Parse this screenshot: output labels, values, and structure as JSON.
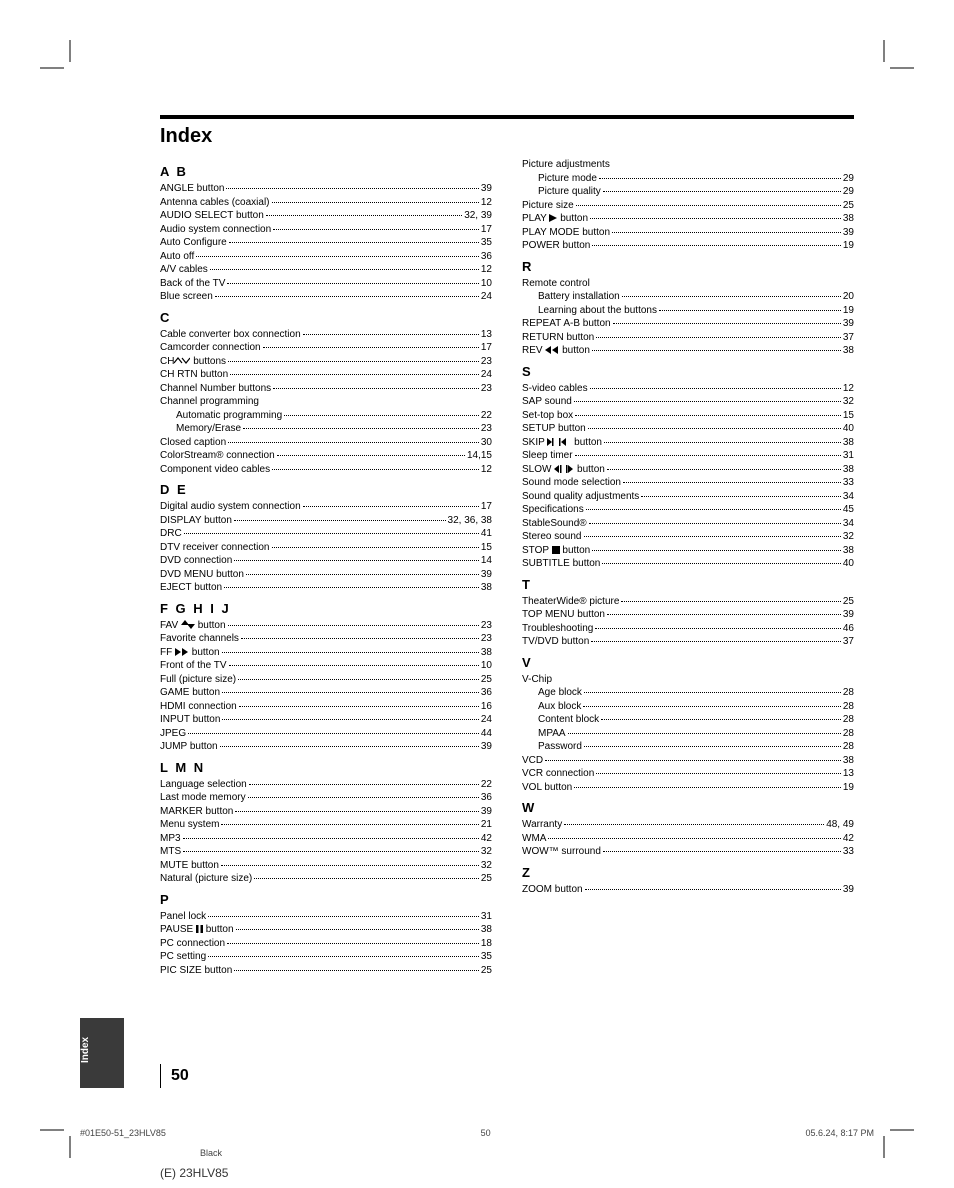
{
  "title": "Index",
  "side_tab": "Index",
  "page_number_display": "50",
  "footer": {
    "left": "#01E50-51_23HLV85",
    "mid": "50",
    "right": "05.6.24, 8:17 PM",
    "black": "Black",
    "model": "(E) 23HLV85"
  },
  "icons": {
    "up_down": "▲▼",
    "ch_arrows": "∧ ∨"
  },
  "left_sections": [
    {
      "letter": "A B",
      "entries": [
        {
          "label": "ANGLE button",
          "page": "39"
        },
        {
          "label": "Antenna cables (coaxial)",
          "page": "12"
        },
        {
          "label": "AUDIO SELECT button",
          "page": "32, 39"
        },
        {
          "label": "Audio system connection",
          "page": "17"
        },
        {
          "label": "Auto Configure",
          "page": "35"
        },
        {
          "label": "Auto off",
          "page": "36"
        },
        {
          "label": "A/V cables",
          "page": "12"
        },
        {
          "label": "Back of the TV",
          "page": "10"
        },
        {
          "label": "Blue screen",
          "page": "24"
        }
      ]
    },
    {
      "letter": "C",
      "entries": [
        {
          "label": "Cable converter box connection",
          "page": "13"
        },
        {
          "label": "Camcorder connection",
          "page": "17"
        },
        {
          "label": "CH",
          "icon": "ch",
          "label2": " buttons",
          "page": "23"
        },
        {
          "label": "CH RTN button",
          "page": "24"
        },
        {
          "label": "Channel Number buttons",
          "page": "23"
        },
        {
          "label": "Channel programming",
          "header": true
        },
        {
          "label": "Automatic programming",
          "page": "22",
          "sub": true
        },
        {
          "label": "Memory/Erase",
          "page": "23",
          "sub": true
        },
        {
          "label": "Closed caption",
          "page": "30"
        },
        {
          "label": "ColorStream® connection",
          "page": "14,15"
        },
        {
          "label": "Component video cables",
          "page": "12"
        }
      ]
    },
    {
      "letter": "D E",
      "entries": [
        {
          "label": "Digital audio system connection",
          "page": "17"
        },
        {
          "label": "DISPLAY button",
          "page": "32, 36, 38"
        },
        {
          "label": "DRC",
          "page": "41"
        },
        {
          "label": "DTV receiver connection",
          "page": "15"
        },
        {
          "label": "DVD connection",
          "page": "14"
        },
        {
          "label": "DVD MENU button",
          "page": "39"
        },
        {
          "label": "EJECT button",
          "page": "38"
        }
      ]
    },
    {
      "letter": "F G H I J",
      "entries": [
        {
          "label": "FAV ",
          "icon": "updown",
          "label2": " button",
          "page": "23"
        },
        {
          "label": "Favorite channels",
          "page": "23"
        },
        {
          "label": "FF ",
          "icon": "ff",
          "label2": " button",
          "page": "38"
        },
        {
          "label": "Front of the TV",
          "page": "10"
        },
        {
          "label": "Full (picture size)",
          "page": "25"
        },
        {
          "label": "GAME button",
          "page": "36"
        },
        {
          "label": "HDMI connection",
          "page": "16"
        },
        {
          "label": "INPUT button",
          "page": "24"
        },
        {
          "label": "JPEG",
          "page": "44"
        },
        {
          "label": "JUMP button",
          "page": "39"
        }
      ]
    },
    {
      "letter": "L M N",
      "entries": [
        {
          "label": "Language selection",
          "page": "22"
        },
        {
          "label": "Last mode memory",
          "page": "36"
        },
        {
          "label": "MARKER button",
          "page": "39"
        },
        {
          "label": "Menu system",
          "page": "21"
        },
        {
          "label": "MP3",
          "page": "42"
        },
        {
          "label": "MTS",
          "page": "32"
        },
        {
          "label": "MUTE button",
          "page": "32"
        },
        {
          "label": "Natural (picture size)",
          "page": "25"
        }
      ]
    },
    {
      "letter": "P",
      "entries": [
        {
          "label": "Panel lock",
          "page": "31"
        },
        {
          "label": "PAUSE ",
          "icon": "pause",
          "label2": " button",
          "page": "38"
        },
        {
          "label": "PC connection",
          "page": "18"
        },
        {
          "label": "PC setting",
          "page": "35"
        },
        {
          "label": "PIC SIZE button",
          "page": "25"
        }
      ]
    }
  ],
  "right_sections": [
    {
      "letter": null,
      "entries": [
        {
          "label": "Picture adjustments",
          "header": true
        },
        {
          "label": "Picture mode",
          "page": "29",
          "sub": true
        },
        {
          "label": "Picture quality",
          "page": "29",
          "sub": true
        },
        {
          "label": "Picture size",
          "page": "25"
        },
        {
          "label": "PLAY ",
          "icon": "play",
          "label2": " button",
          "page": "38"
        },
        {
          "label": "PLAY MODE button",
          "page": "39"
        },
        {
          "label": "POWER button",
          "page": "19"
        }
      ]
    },
    {
      "letter": "R",
      "entries": [
        {
          "label": "Remote control",
          "header": true
        },
        {
          "label": "Battery installation",
          "page": "20",
          "sub": true
        },
        {
          "label": "Learning about the buttons",
          "page": "19",
          "sub": true
        },
        {
          "label": "REPEAT A-B button",
          "page": "39"
        },
        {
          "label": "RETURN button",
          "page": "37"
        },
        {
          "label": "REV ",
          "icon": "rev",
          "label2": " button",
          "page": "38"
        }
      ]
    },
    {
      "letter": "S",
      "entries": [
        {
          "label": "S-video cables",
          "page": "12"
        },
        {
          "label": "SAP sound",
          "page": "32"
        },
        {
          "label": "Set-top box",
          "page": "15"
        },
        {
          "label": "SETUP button",
          "page": "40"
        },
        {
          "label": "SKIP ",
          "icon": "skip",
          "label2": " button",
          "page": "38"
        },
        {
          "label": "Sleep timer",
          "page": "31"
        },
        {
          "label": "SLOW ",
          "icon": "slow",
          "label2": " button",
          "page": "38"
        },
        {
          "label": "Sound mode selection",
          "page": "33"
        },
        {
          "label": "Sound quality adjustments",
          "page": "34"
        },
        {
          "label": "Specifications",
          "page": "45"
        },
        {
          "label": "StableSound®",
          "page": "34"
        },
        {
          "label": "Stereo sound",
          "page": "32"
        },
        {
          "label": "STOP ",
          "icon": "stop",
          "label2": " button",
          "page": "38"
        },
        {
          "label": "SUBTITLE button",
          "page": "40"
        }
      ]
    },
    {
      "letter": "T",
      "entries": [
        {
          "label": "TheaterWide® picture",
          "page": "25"
        },
        {
          "label": "TOP MENU button",
          "page": "39"
        },
        {
          "label": "Troubleshooting",
          "page": "46"
        },
        {
          "label": "TV/DVD button",
          "page": "37"
        }
      ]
    },
    {
      "letter": "V",
      "entries": [
        {
          "label": "V-Chip",
          "header": true
        },
        {
          "label": "Age block",
          "page": "28",
          "sub": true
        },
        {
          "label": "Aux block",
          "page": "28",
          "sub": true
        },
        {
          "label": "Content block",
          "page": "28",
          "sub": true
        },
        {
          "label": "MPAA",
          "page": "28",
          "sub": true
        },
        {
          "label": "Password",
          "page": "28",
          "sub": true
        },
        {
          "label": "VCD",
          "page": "38"
        },
        {
          "label": "VCR connection",
          "page": "13"
        },
        {
          "label": "VOL button",
          "page": "19"
        }
      ]
    },
    {
      "letter": "W",
      "entries": [
        {
          "label": "Warranty",
          "page": "48, 49"
        },
        {
          "label": "WMA",
          "page": "42"
        },
        {
          "label": "WOW™ surround",
          "page": "33"
        }
      ]
    },
    {
      "letter": "Z",
      "entries": [
        {
          "label": "ZOOM button",
          "page": "39"
        }
      ]
    }
  ]
}
